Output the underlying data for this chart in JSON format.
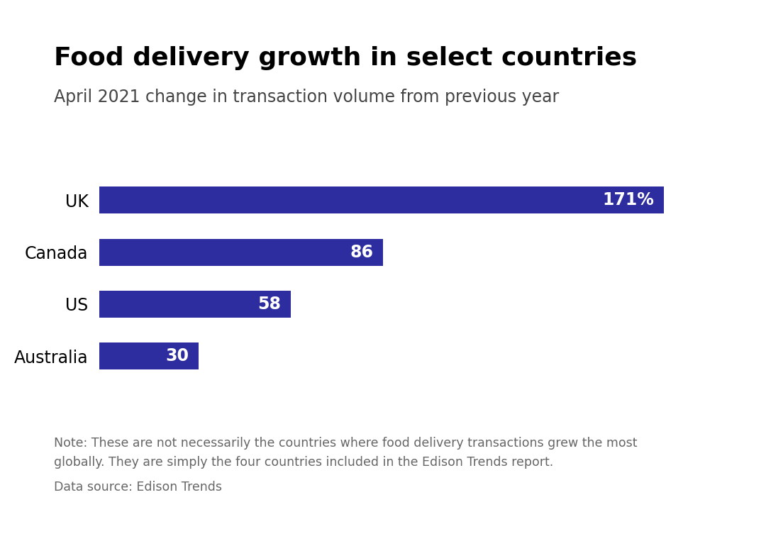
{
  "title": "Food delivery growth in select countries",
  "subtitle": "April 2021 change in transaction volume from previous year",
  "countries": [
    "UK",
    "Canada",
    "US",
    "Australia"
  ],
  "values": [
    171,
    86,
    58,
    30
  ],
  "bar_color": "#2d2d9f",
  "label_color": "#ffffff",
  "labels": [
    "171%",
    "86",
    "58",
    "30"
  ],
  "note_line1": "Note: These are not necessarily the countries where food delivery transactions grew the most",
  "note_line2": "globally. They are simply the four countries included in the Edison Trends report.",
  "data_source": "Data source: Edison Trends",
  "background_color": "#ffffff",
  "bottom_bar_color": "#111111",
  "title_fontsize": 26,
  "subtitle_fontsize": 17,
  "country_fontsize": 17,
  "bar_label_fontsize": 17,
  "note_fontsize": 12.5,
  "xlim": [
    0,
    195
  ]
}
